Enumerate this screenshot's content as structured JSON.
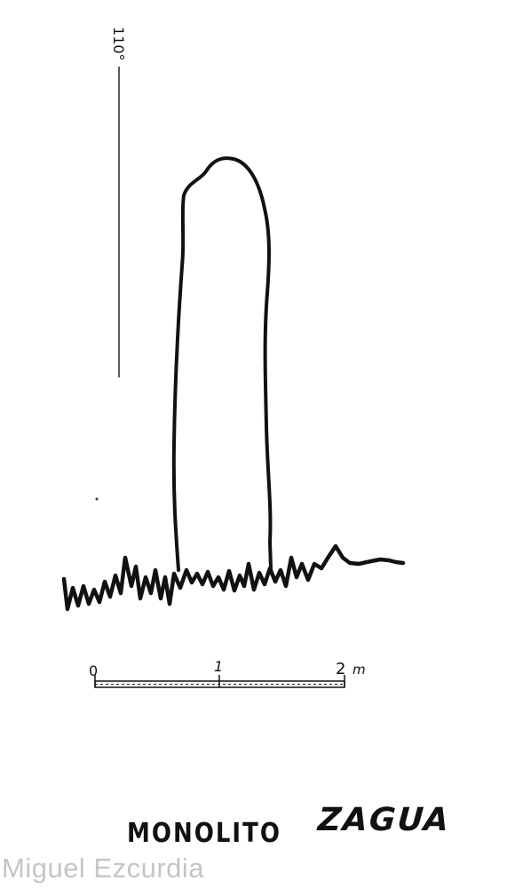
{
  "height_marker": {
    "label": "110°"
  },
  "scale_bar": {
    "labels": [
      "0",
      "1",
      "2"
    ],
    "unit": "m"
  },
  "title": {
    "object": "MONOLITO",
    "place": "ZAGUA"
  },
  "watermark": "Miguel Ezcurdia",
  "colors": {
    "ink": "#111111",
    "watermark": "#969696"
  }
}
